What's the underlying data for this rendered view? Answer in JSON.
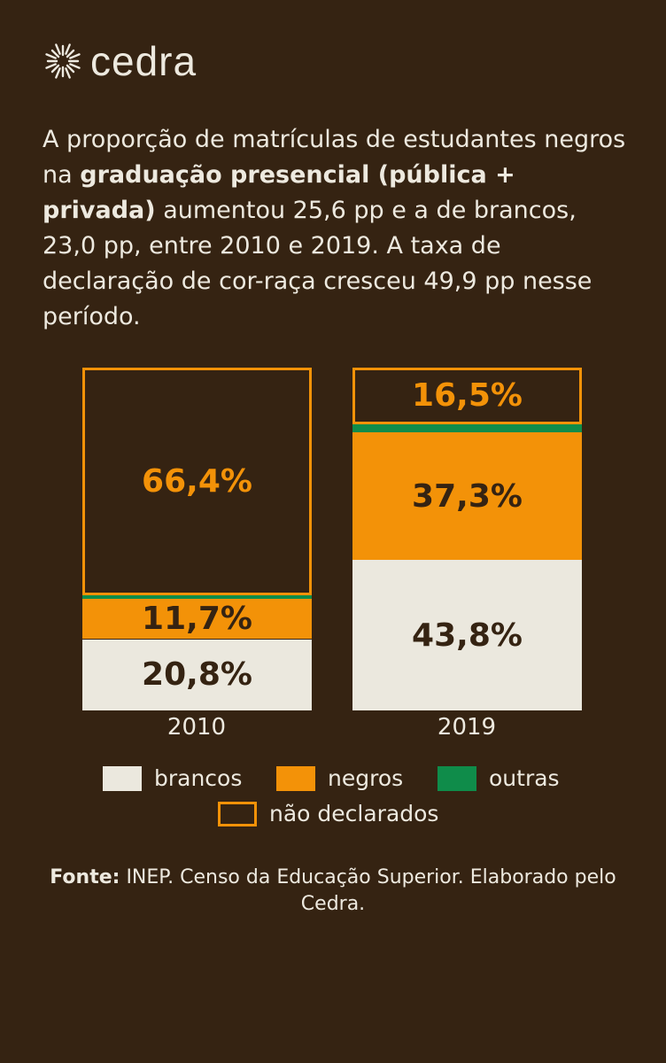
{
  "brand": "cedra",
  "headline": {
    "p1": "A proporção de matrículas de estudantes negros na ",
    "bold": "graduação presencial (pública + privada)",
    "p2": " aumentou 25,6 pp e a de brancos, 23,0 pp, entre 2010 e 2019. A taxa de declaração de cor-raça cresceu 49,9 pp nesse período."
  },
  "chart_data": {
    "type": "bar",
    "stacked": true,
    "ylim": [
      0,
      100
    ],
    "categories": [
      "2010",
      "2019"
    ],
    "series": [
      {
        "name": "brancos",
        "color": "#ebe8de",
        "text_color": "#352312",
        "values": [
          20.8,
          43.8
        ],
        "labels": [
          "20,8%",
          "43,8%"
        ]
      },
      {
        "name": "negros",
        "color": "#f39208",
        "text_color": "#352312",
        "values": [
          11.7,
          37.3
        ],
        "labels": [
          "11,7%",
          "37,3%"
        ]
      },
      {
        "name": "outras",
        "color": "#0f8c4a",
        "values": [
          1.1,
          2.4
        ],
        "labels": [
          "",
          ""
        ]
      },
      {
        "name": "não declarados",
        "color": "outline",
        "text_color": "#f39208",
        "values": [
          66.4,
          16.5
        ],
        "labels": [
          "66,4%",
          "16,5%"
        ]
      }
    ]
  },
  "source": {
    "bold": "Fonte:",
    "text": " INEP. Censo da Educação Superior. Elaborado pelo Cedra."
  }
}
